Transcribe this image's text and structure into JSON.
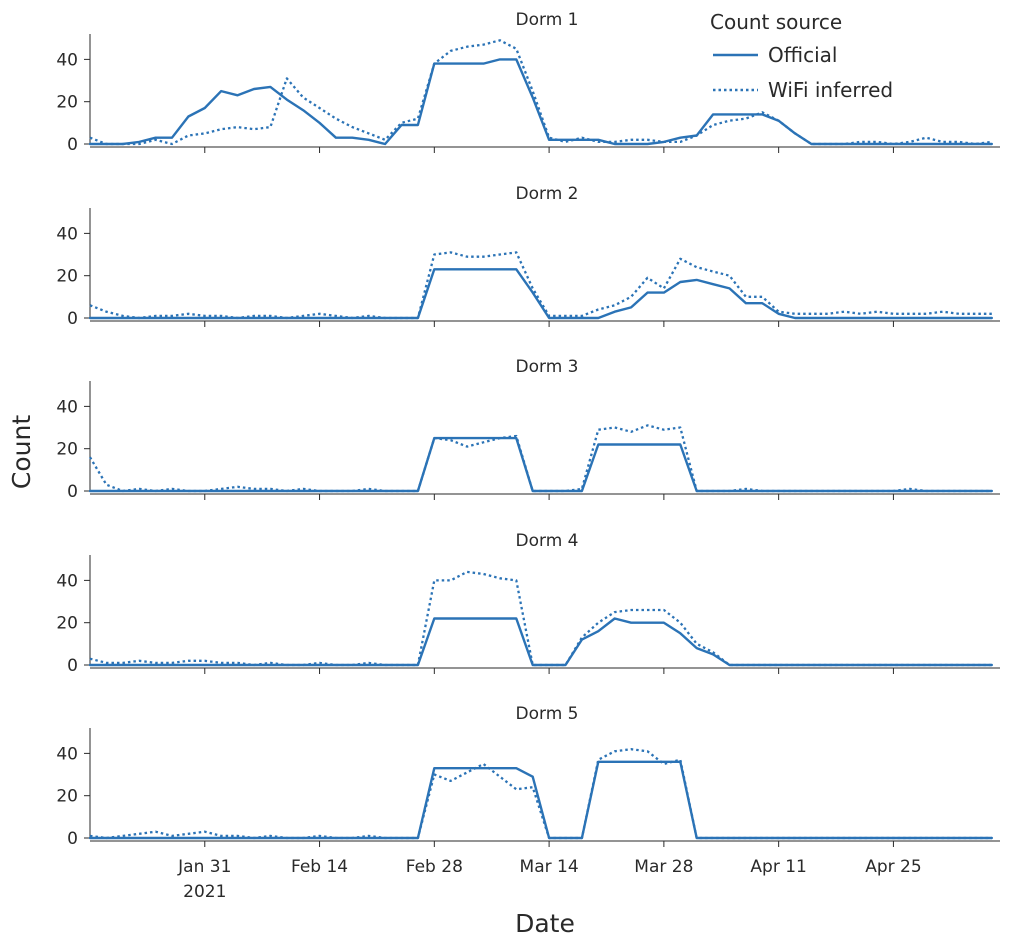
{
  "chart_data": {
    "type": "line",
    "x_start": "2021-01-17",
    "x_interval_days": 2,
    "xlabel": "Date",
    "ylabel": "Count",
    "ylim": [
      0,
      52
    ],
    "y_ticks": [
      0,
      20,
      40
    ],
    "x_ticks": [
      {
        "day": 14,
        "label": "Jan 31",
        "sublabel": "2021"
      },
      {
        "day": 28,
        "label": "Feb 14",
        "sublabel": ""
      },
      {
        "day": 42,
        "label": "Feb 28",
        "sublabel": ""
      },
      {
        "day": 56,
        "label": "Mar 14",
        "sublabel": ""
      },
      {
        "day": 70,
        "label": "Mar 28",
        "sublabel": ""
      },
      {
        "day": 84,
        "label": "Apr 11",
        "sublabel": ""
      },
      {
        "day": 98,
        "label": "Apr 25",
        "sublabel": ""
      }
    ],
    "x_range_days": [
      0,
      111
    ],
    "legend": {
      "title": "Count source",
      "position": "top-right",
      "entries": [
        {
          "name": "Official",
          "style": "solid"
        },
        {
          "name": "WiFi inferred",
          "style": "dotted"
        }
      ]
    },
    "color": "#2b73b6",
    "panels": [
      {
        "title": "Dorm 1",
        "series": [
          {
            "name": "Official",
            "values": [
              0,
              0,
              0,
              1,
              3,
              3,
              13,
              17,
              25,
              23,
              26,
              27,
              21,
              16,
              10,
              3,
              3,
              2,
              0,
              9,
              9,
              38,
              38,
              38,
              38,
              40,
              40,
              22,
              2,
              2,
              2,
              2,
              0,
              0,
              0,
              1,
              3,
              4,
              14,
              14,
              14,
              14,
              11,
              5,
              0,
              0,
              0,
              0,
              0,
              0,
              0,
              0,
              0,
              0,
              0,
              0
            ]
          },
          {
            "name": "WiFi inferred",
            "values": [
              3,
              0,
              0,
              0,
              2,
              0,
              4,
              5,
              7,
              8,
              7,
              8,
              31,
              22,
              17,
              12,
              8,
              5,
              2,
              10,
              12,
              38,
              44,
              46,
              47,
              49,
              45,
              25,
              3,
              1,
              3,
              1,
              1,
              2,
              2,
              1,
              1,
              4,
              9,
              11,
              12,
              15,
              11,
              5,
              0,
              0,
              0,
              1,
              1,
              0,
              1,
              3,
              1,
              1,
              0,
              1
            ]
          }
        ]
      },
      {
        "title": "Dorm 2",
        "series": [
          {
            "name": "Official",
            "values": [
              0,
              0,
              0,
              0,
              0,
              0,
              0,
              0,
              0,
              0,
              0,
              0,
              0,
              0,
              0,
              0,
              0,
              0,
              0,
              0,
              0,
              23,
              23,
              23,
              23,
              23,
              23,
              12,
              0,
              0,
              0,
              0,
              3,
              5,
              12,
              12,
              17,
              18,
              16,
              14,
              7,
              7,
              2,
              0,
              0,
              0,
              0,
              0,
              0,
              0,
              0,
              0,
              0,
              0,
              0,
              0
            ]
          },
          {
            "name": "WiFi inferred",
            "values": [
              6,
              3,
              1,
              0,
              1,
              1,
              2,
              1,
              1,
              0,
              1,
              1,
              0,
              1,
              2,
              1,
              0,
              1,
              0,
              0,
              0,
              30,
              31,
              29,
              29,
              30,
              31,
              14,
              1,
              1,
              1,
              4,
              6,
              10,
              19,
              14,
              28,
              24,
              22,
              20,
              10,
              10,
              3,
              2,
              2,
              2,
              3,
              2,
              3,
              2,
              2,
              2,
              3,
              2,
              2,
              2
            ]
          }
        ]
      },
      {
        "title": "Dorm 3",
        "series": [
          {
            "name": "Official",
            "values": [
              0,
              0,
              0,
              0,
              0,
              0,
              0,
              0,
              0,
              0,
              0,
              0,
              0,
              0,
              0,
              0,
              0,
              0,
              0,
              0,
              0,
              25,
              25,
              25,
              25,
              25,
              25,
              0,
              0,
              0,
              0,
              22,
              22,
              22,
              22,
              22,
              22,
              0,
              0,
              0,
              0,
              0,
              0,
              0,
              0,
              0,
              0,
              0,
              0,
              0,
              0,
              0,
              0,
              0,
              0,
              0
            ]
          },
          {
            "name": "WiFi inferred",
            "values": [
              16,
              3,
              0,
              1,
              0,
              1,
              0,
              0,
              1,
              2,
              1,
              1,
              0,
              1,
              0,
              0,
              0,
              1,
              0,
              0,
              0,
              25,
              24,
              21,
              23,
              25,
              26,
              0,
              0,
              0,
              1,
              29,
              30,
              28,
              31,
              29,
              30,
              0,
              0,
              0,
              1,
              0,
              0,
              0,
              0,
              0,
              0,
              0,
              0,
              0,
              1,
              0,
              0,
              0,
              0,
              0
            ]
          }
        ]
      },
      {
        "title": "Dorm 4",
        "series": [
          {
            "name": "Official",
            "values": [
              0,
              0,
              0,
              0,
              0,
              0,
              0,
              0,
              0,
              0,
              0,
              0,
              0,
              0,
              0,
              0,
              0,
              0,
              0,
              0,
              0,
              22,
              22,
              22,
              22,
              22,
              22,
              0,
              0,
              0,
              12,
              16,
              22,
              20,
              20,
              20,
              15,
              8,
              5,
              0,
              0,
              0,
              0,
              0,
              0,
              0,
              0,
              0,
              0,
              0,
              0,
              0,
              0,
              0,
              0,
              0
            ]
          },
          {
            "name": "WiFi inferred",
            "values": [
              3,
              1,
              1,
              2,
              1,
              1,
              2,
              2,
              1,
              1,
              0,
              1,
              0,
              0,
              1,
              0,
              0,
              1,
              0,
              0,
              0,
              40,
              40,
              44,
              43,
              41,
              40,
              0,
              0,
              0,
              13,
              20,
              25,
              26,
              26,
              26,
              20,
              10,
              6,
              0,
              0,
              0,
              0,
              0,
              0,
              0,
              0,
              0,
              0,
              0,
              0,
              0,
              0,
              0,
              0,
              0
            ]
          }
        ]
      },
      {
        "title": "Dorm 5",
        "series": [
          {
            "name": "Official",
            "values": [
              0,
              0,
              0,
              0,
              0,
              0,
              0,
              0,
              0,
              0,
              0,
              0,
              0,
              0,
              0,
              0,
              0,
              0,
              0,
              0,
              0,
              33,
              33,
              33,
              33,
              33,
              33,
              29,
              0,
              0,
              0,
              36,
              36,
              36,
              36,
              36,
              36,
              0,
              0,
              0,
              0,
              0,
              0,
              0,
              0,
              0,
              0,
              0,
              0,
              0,
              0,
              0,
              0,
              0,
              0,
              0
            ]
          },
          {
            "name": "WiFi inferred",
            "values": [
              1,
              0,
              1,
              2,
              3,
              1,
              2,
              3,
              1,
              1,
              0,
              1,
              0,
              0,
              1,
              0,
              0,
              1,
              0,
              0,
              0,
              30,
              27,
              31,
              35,
              29,
              23,
              24,
              0,
              0,
              0,
              37,
              41,
              42,
              41,
              35,
              37,
              0,
              0,
              0,
              0,
              0,
              0,
              0,
              0,
              0,
              0,
              0,
              0,
              0,
              0,
              0,
              0,
              0,
              0,
              0
            ]
          }
        ]
      }
    ]
  }
}
